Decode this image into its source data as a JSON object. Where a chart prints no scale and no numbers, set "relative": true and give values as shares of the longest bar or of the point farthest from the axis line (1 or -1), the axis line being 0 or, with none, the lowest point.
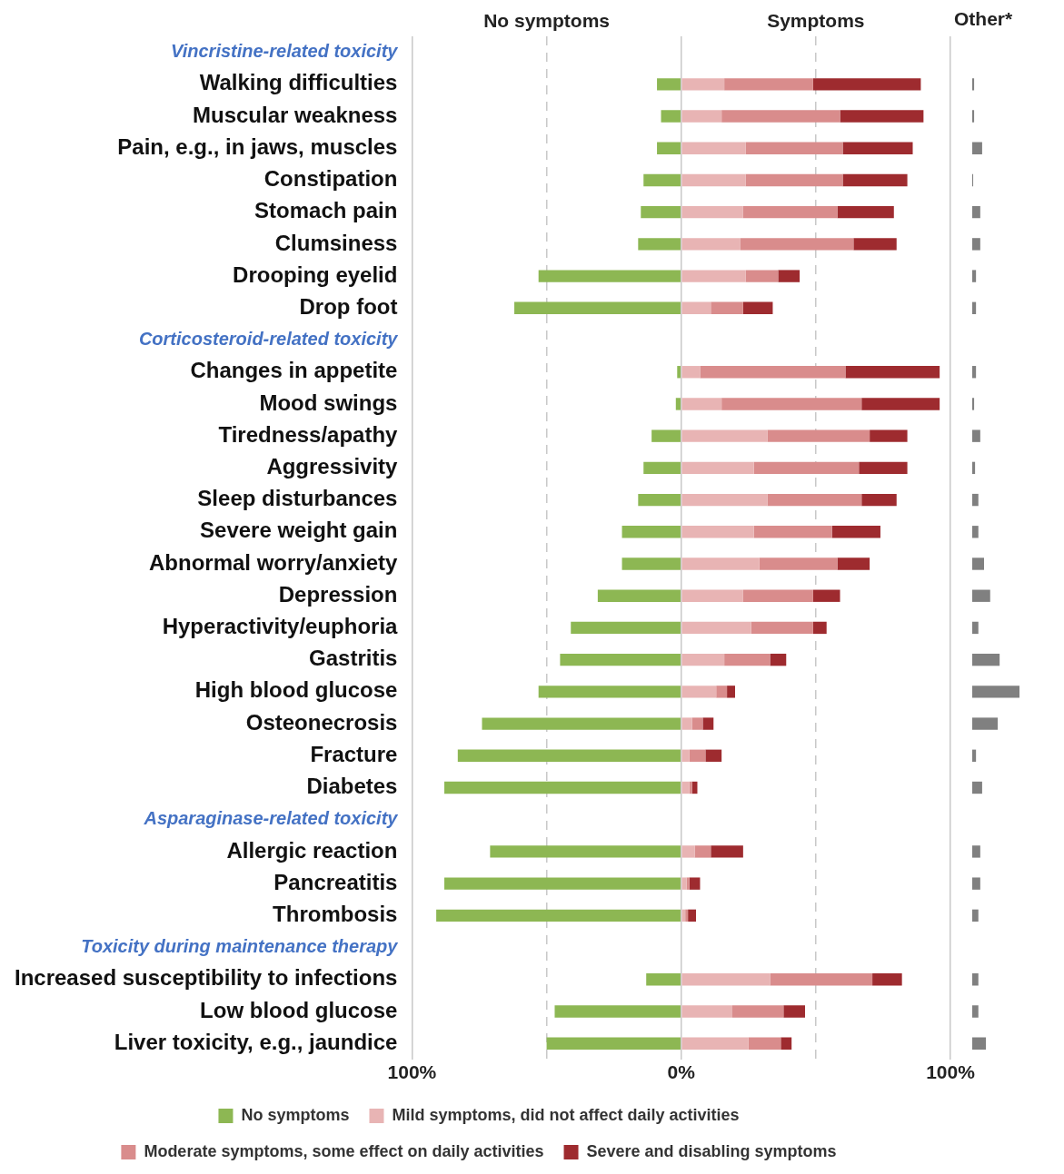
{
  "chart_data": [
    {
      "type": "bar",
      "orientation": "horizontal",
      "stacked": true,
      "categories": [
        "Vincristine-related toxicity",
        "Walking difficulties",
        "Muscular weakness",
        "Pain, e.g., in jaws, muscles",
        "Constipation",
        "Stomach pain",
        "Clumsiness",
        "Drooping eyelid",
        "Drop foot",
        "Corticosteroid-related toxicity",
        "Changes in appetite",
        "Mood swings",
        "Tiredness/apathy",
        "Aggressivity",
        "Sleep disturbances",
        "Severe weight gain",
        "Abnormal worry/anxiety",
        "Depression",
        "Hyperactivity/euphoria",
        "Gastritis",
        "High blood glucose",
        "Osteonecrosis",
        "Fracture",
        "Diabetes",
        "Asparaginase-related toxicity",
        "Allergic reaction",
        "Pancreatitis",
        "Thrombosis",
        "Toxicity during maintenance therapy",
        "Increased susceptibility to infections",
        "Low blood glucose",
        "Liver toxicity, e.g., jaundice"
      ],
      "series": [
        {
          "name": "No symptoms",
          "color": "#8db753",
          "values": [
            null,
            -9,
            -7.5,
            -9,
            -14,
            -15,
            -16,
            -53,
            -62,
            null,
            -1.5,
            -2,
            -11,
            -14,
            -16,
            -22,
            -22,
            -31,
            -41,
            -45,
            -53,
            -74,
            -83,
            -88,
            null,
            -71,
            -88,
            -91,
            null,
            -13,
            -47,
            -50
          ]
        },
        {
          "name": "Mild symptoms, did not affect daily activities",
          "color": "#e8b4b4",
          "values": [
            null,
            16,
            15,
            24,
            24,
            23,
            22,
            24,
            11,
            null,
            7,
            15,
            32,
            27,
            32,
            27,
            29,
            23,
            26,
            16,
            13,
            4,
            3,
            3,
            null,
            5,
            2,
            1.5,
            null,
            33,
            19,
            25
          ]
        },
        {
          "name": "Moderate symptoms, some effect on daily activities",
          "color": "#d98c8c",
          "values": [
            null,
            33,
            44,
            36,
            36,
            35,
            42,
            12,
            12,
            null,
            54,
            52,
            38,
            39,
            35,
            29,
            29,
            26,
            23,
            17,
            4,
            4,
            6,
            1,
            null,
            6,
            1,
            1,
            null,
            38,
            19,
            12
          ]
        },
        {
          "name": "Severe and disabling symptoms",
          "color": "#9e2b2f",
          "values": [
            null,
            40,
            31,
            26,
            24,
            21,
            16,
            8,
            11,
            null,
            35,
            29,
            14,
            18,
            13,
            18,
            12,
            10,
            5,
            6,
            3,
            4,
            6,
            2,
            null,
            12,
            4,
            3,
            null,
            11,
            8,
            4
          ]
        }
      ],
      "xlim": [
        -100,
        100
      ],
      "xticks": [
        {
          "value": -100,
          "label": "100%"
        },
        {
          "value": -50,
          "label": null
        },
        {
          "value": 0,
          "label": "0%"
        },
        {
          "value": 50,
          "label": null
        },
        {
          "value": 100,
          "label": "100%"
        }
      ],
      "grid": "x",
      "legend": "bottom",
      "annotations": [
        "No symptoms",
        "Symptoms"
      ]
    },
    {
      "type": "bar",
      "orientation": "horizontal",
      "relative": true,
      "title": "Other*",
      "categories": [
        null,
        null,
        null,
        null,
        null,
        null,
        null,
        null,
        null,
        null,
        null,
        null,
        null,
        null,
        null,
        null,
        null,
        null,
        null,
        null,
        null,
        null,
        null,
        null,
        null,
        null,
        null,
        null,
        null,
        null,
        null,
        null
      ],
      "color": "#808080",
      "values": [
        null,
        0.04,
        0.04,
        0.21,
        0.02,
        0.17,
        0.17,
        0.08,
        0.08,
        null,
        0.08,
        0.04,
        0.17,
        0.06,
        0.13,
        0.13,
        0.25,
        0.38,
        0.13,
        0.58,
        1,
        0.54,
        0.08,
        0.21,
        null,
        0.17,
        0.17,
        0.13,
        null,
        0.13,
        0.13,
        0.29
      ]
    }
  ]
}
